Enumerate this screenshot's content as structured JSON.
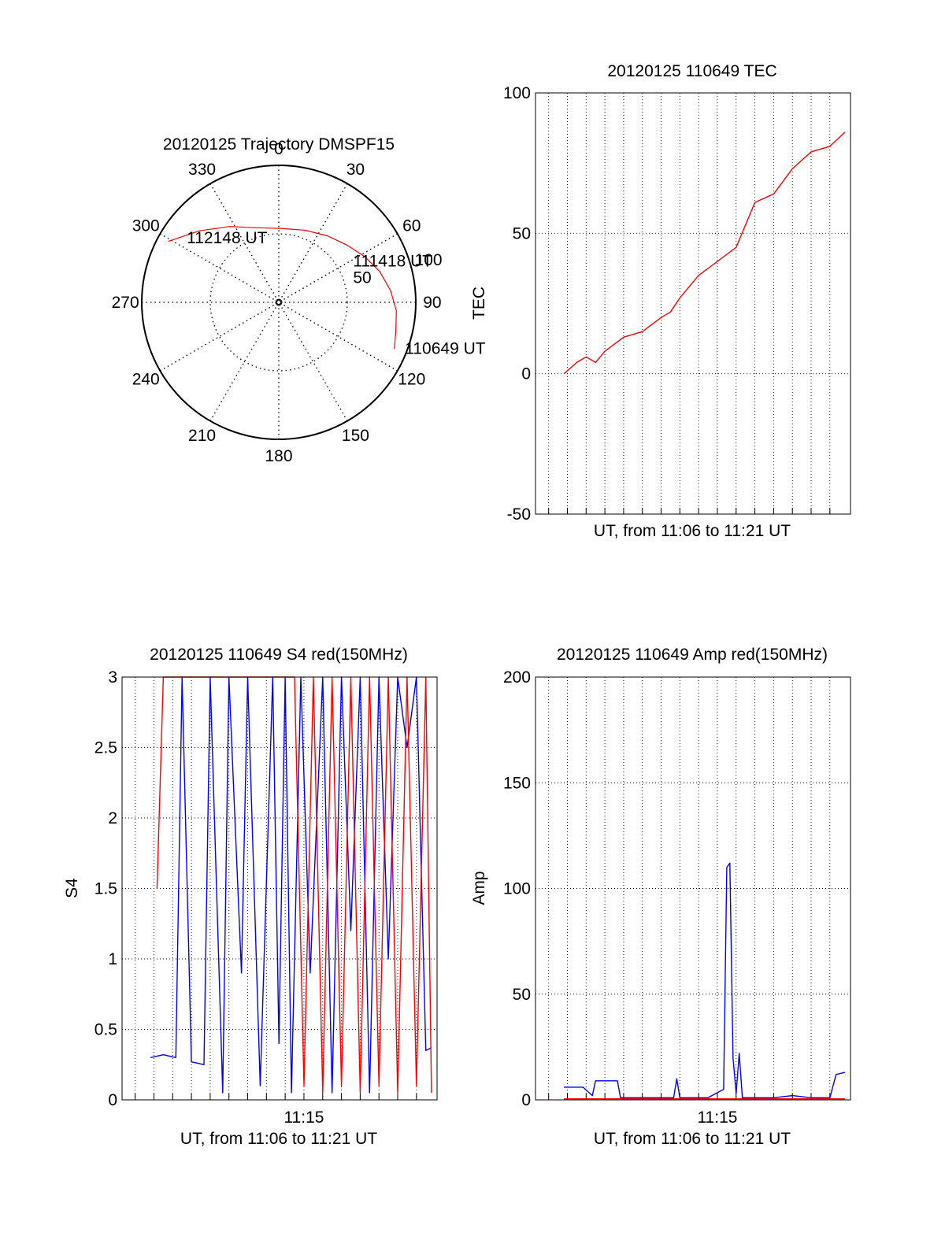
{
  "chart_data": [
    {
      "type": "polar",
      "title": "20120125 Trajectory DMSPF15",
      "angle_labels": [
        "0",
        "30",
        "60",
        "90",
        "120",
        "150",
        "180",
        "210",
        "240",
        "270",
        "300",
        "330"
      ],
      "radial_labels": [
        "50",
        "100"
      ],
      "series": [
        {
          "color": "#ff0000",
          "points": [
            {
              "az": 299,
              "r": 92
            },
            {
              "az": 312,
              "r": 78
            },
            {
              "az": 327,
              "r": 66
            },
            {
              "az": 343,
              "r": 57
            },
            {
              "az": 1,
              "r": 54
            },
            {
              "az": 20,
              "r": 56
            },
            {
              "az": 36,
              "r": 60
            },
            {
              "az": 50,
              "r": 65
            },
            {
              "az": 62,
              "r": 71
            },
            {
              "az": 73,
              "r": 77
            },
            {
              "az": 84,
              "r": 82
            },
            {
              "az": 94,
              "r": 86
            },
            {
              "az": 104,
              "r": 88
            },
            {
              "az": 112,
              "r": 91
            }
          ]
        }
      ],
      "annotations": [
        {
          "text": "112148 UT",
          "az": 305,
          "r": 82
        },
        {
          "text": "111418 UT",
          "az": 61,
          "r": 62
        },
        {
          "text": "110649 UT",
          "az": 110,
          "r": 98
        }
      ]
    },
    {
      "type": "line",
      "title": "20120125 110649 TEC",
      "xlabel": "UT, from 11:06 to 11:21 UT",
      "ylabel": "TEC",
      "ylim": [
        -50,
        100
      ],
      "yticks": [
        -50,
        0,
        50,
        100
      ],
      "xlim": [
        "11:05:18",
        "11:22:06"
      ],
      "grid": true,
      "series": [
        {
          "color": "#ff0000",
          "x": [
            "11:06:49",
            "11:07:30",
            "11:08:00",
            "11:08:30",
            "11:09:00",
            "11:10:00",
            "11:11:00",
            "11:12:00",
            "11:12:30",
            "11:13:00",
            "11:14:00",
            "11:15:00",
            "11:16:00",
            "11:16:30",
            "11:17:00",
            "11:18:00",
            "11:19:00",
            "11:20:00",
            "11:21:00",
            "11:21:48"
          ],
          "y": [
            0,
            4,
            6,
            4,
            8,
            13,
            15,
            20,
            22,
            27,
            35,
            40,
            45,
            53,
            61,
            64,
            73,
            79,
            81,
            86
          ]
        }
      ]
    },
    {
      "type": "line",
      "title": "20120125 110649 S4 red(150MHz)",
      "xlabel": "UT, from 11:06 to 11:21 UT",
      "ylabel": "S4",
      "ylim": [
        0,
        3
      ],
      "yticks": [
        "0",
        "0.5",
        "1",
        "1.5",
        "2",
        "2.5",
        "3"
      ],
      "xlim": [
        "11:05:18",
        "11:22:06"
      ],
      "xtick_labels": [
        {
          "x": "11:15:00",
          "label": "11:15"
        }
      ],
      "grid": true,
      "series": [
        {
          "color": "#0000ff",
          "x": [
            "11:06:49",
            "11:07:30",
            "11:08:10",
            "11:08:30",
            "11:09:00",
            "11:09:40",
            "11:10:00",
            "11:10:40",
            "11:11:00",
            "11:11:40",
            "11:12:00",
            "11:12:40",
            "11:13:20",
            "11:13:40",
            "11:14:00",
            "11:14:20",
            "11:14:50",
            "11:15:20",
            "11:16:00",
            "11:16:30",
            "11:17:00",
            "11:17:30",
            "11:18:00",
            "11:18:30",
            "11:19:00",
            "11:19:30",
            "11:20:00",
            "11:20:30",
            "11:21:00",
            "11:21:30",
            "11:21:48"
          ],
          "y": [
            0.3,
            0.32,
            0.3,
            3,
            0.27,
            0.25,
            3,
            0.05,
            3,
            0.9,
            3,
            0.1,
            3,
            0.4,
            3,
            0.05,
            3,
            0.9,
            3,
            0.05,
            3,
            1.2,
            3,
            0.05,
            3,
            1.0,
            3,
            2.5,
            3,
            0.35,
            0.37
          ]
        },
        {
          "color": "#ff0000",
          "x": [
            "11:07:10",
            "11:07:30",
            "11:08:00",
            "11:09:00",
            "11:10:00",
            "11:14:30",
            "11:15:00",
            "11:15:30",
            "11:16:00",
            "11:16:30",
            "11:17:00",
            "11:17:30",
            "11:18:00",
            "11:18:30",
            "11:19:00",
            "11:19:30",
            "11:20:00",
            "11:20:30",
            "11:21:00",
            "11:21:30",
            "11:21:48"
          ],
          "y": [
            1.5,
            3,
            3,
            3,
            3,
            3,
            0.1,
            3,
            0.05,
            3,
            0.1,
            3,
            0.05,
            3,
            0.1,
            3,
            0.05,
            3,
            0.1,
            3,
            0.05
          ]
        }
      ]
    },
    {
      "type": "line",
      "title": "20120125 110649 Amp red(150MHz)",
      "xlabel": "UT, from 11:06 to 11:21 UT",
      "ylabel": "Amp",
      "ylim": [
        0,
        200
      ],
      "yticks": [
        0,
        50,
        100,
        150,
        200
      ],
      "xlim": [
        "11:05:18",
        "11:22:06"
      ],
      "xtick_labels": [
        {
          "x": "11:15:00",
          "label": "11:15"
        }
      ],
      "grid": true,
      "series": [
        {
          "color": "#0000ff",
          "x": [
            "11:06:49",
            "11:07:50",
            "11:08:20",
            "11:08:30",
            "11:09:40",
            "11:09:50",
            "11:11:00",
            "11:12:40",
            "11:12:50",
            "11:13:00",
            "11:14:00",
            "11:14:30",
            "11:15:20",
            "11:15:30",
            "11:15:40",
            "11:15:50",
            "11:16:00",
            "11:16:10",
            "11:16:20",
            "11:17:00",
            "11:18:00",
            "11:19:00",
            "11:20:00",
            "11:21:00",
            "11:21:20",
            "11:21:48"
          ],
          "y": [
            6,
            6,
            2,
            9,
            9,
            1,
            1,
            1,
            10,
            1,
            1,
            1,
            5,
            110,
            112,
            20,
            3,
            22,
            1,
            1,
            1,
            2,
            1,
            1,
            12,
            13
          ]
        },
        {
          "color": "#ff0000",
          "x": [
            "11:06:49",
            "11:21:48"
          ],
          "y": [
            0.5,
            0.5
          ]
        }
      ]
    }
  ]
}
